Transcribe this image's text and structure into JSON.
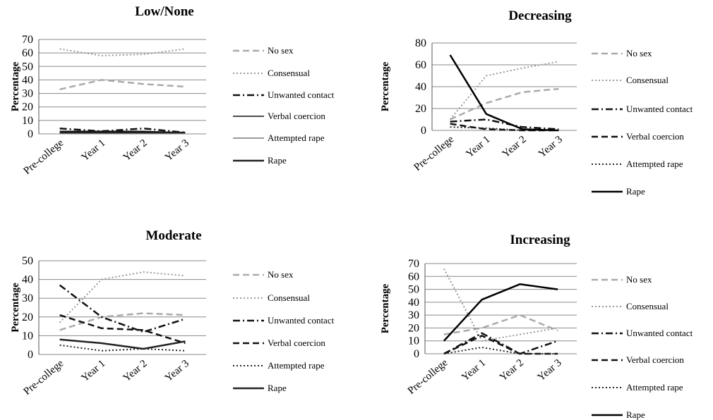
{
  "chart_data": [
    {
      "type": "line",
      "title": "Low/None",
      "ylabel": "Percentage",
      "categories": [
        "Pre-college",
        "Year 1",
        "Year 2",
        "Year 3"
      ],
      "ylim": [
        0,
        70
      ],
      "yticks": [
        0,
        10,
        20,
        30,
        40,
        50,
        60,
        70
      ],
      "grid": true,
      "legend_position": "right",
      "series": [
        {
          "name": "No sex",
          "values": [
            33,
            40,
            37,
            35
          ],
          "color": "#aaaaaa",
          "style": "dash",
          "width": 2.5
        },
        {
          "name": "Consensual",
          "values": [
            63,
            58,
            59,
            63
          ],
          "color": "#999999",
          "style": "dot",
          "width": 2
        },
        {
          "name": "Unwanted contact",
          "values": [
            4,
            2,
            4,
            1
          ],
          "color": "#111111",
          "style": "dashdot",
          "width": 2.5
        },
        {
          "name": "Verbal coercion",
          "values": [
            2,
            2,
            2,
            1
          ],
          "color": "#111111",
          "style": "solid",
          "width": 1.5
        },
        {
          "name": "Attempted rape",
          "values": [
            1,
            1,
            1,
            1
          ],
          "color": "#999999",
          "style": "solid",
          "width": 2
        },
        {
          "name": "Rape",
          "values": [
            1,
            1,
            1,
            1
          ],
          "color": "#222222",
          "style": "solid",
          "width": 2.5
        }
      ]
    },
    {
      "type": "line",
      "title": "Decreasing",
      "ylabel": "Percentage",
      "categories": [
        "Pre-college",
        "Year 1",
        "Year 2",
        "Year 3"
      ],
      "ylim": [
        0,
        80
      ],
      "yticks": [
        0,
        20,
        40,
        60,
        80
      ],
      "grid": true,
      "legend_position": "right",
      "series": [
        {
          "name": "No sex",
          "values": [
            10,
            25,
            35,
            38
          ],
          "color": "#aaaaaa",
          "style": "dash",
          "width": 2.5
        },
        {
          "name": "Consensual",
          "values": [
            10,
            50,
            57,
            63
          ],
          "color": "#999999",
          "style": "dot",
          "width": 2
        },
        {
          "name": "Unwanted contact",
          "values": [
            8,
            10,
            3,
            1
          ],
          "color": "#111111",
          "style": "dashdot",
          "width": 2.5
        },
        {
          "name": "Verbal coercion",
          "values": [
            6,
            1,
            0,
            0
          ],
          "color": "#111111",
          "style": "dash",
          "width": 2.5
        },
        {
          "name": "Attempted rape",
          "values": [
            3,
            2,
            0,
            0
          ],
          "color": "#222222",
          "style": "dot",
          "width": 2
        },
        {
          "name": "Rape",
          "values": [
            69,
            15,
            1,
            0
          ],
          "color": "#000000",
          "style": "solid",
          "width": 2.5
        }
      ]
    },
    {
      "type": "line",
      "title": "Moderate",
      "ylabel": "Percentage",
      "categories": [
        "Pre-college",
        "Year 1",
        "Year 2",
        "Year 3"
      ],
      "ylim": [
        0,
        50
      ],
      "yticks": [
        0,
        10,
        20,
        30,
        40,
        50
      ],
      "grid": true,
      "legend_position": "right",
      "series": [
        {
          "name": "No sex",
          "values": [
            13,
            20,
            22,
            21
          ],
          "color": "#aaaaaa",
          "style": "dash",
          "width": 2.5
        },
        {
          "name": "Consensual",
          "values": [
            17,
            40,
            44,
            42
          ],
          "color": "#999999",
          "style": "dot",
          "width": 2
        },
        {
          "name": "Unwanted contact",
          "values": [
            37,
            20,
            12,
            19
          ],
          "color": "#111111",
          "style": "dashdot",
          "width": 2.5
        },
        {
          "name": "Verbal coercion",
          "values": [
            21,
            14,
            13,
            6
          ],
          "color": "#111111",
          "style": "dash",
          "width": 2.5
        },
        {
          "name": "Attempted rape",
          "values": [
            5,
            2,
            3,
            2
          ],
          "color": "#222222",
          "style": "dot",
          "width": 2
        },
        {
          "name": "Rape",
          "values": [
            8,
            6,
            3,
            7
          ],
          "color": "#222222",
          "style": "solid",
          "width": 2.5
        }
      ]
    },
    {
      "type": "line",
      "title": "Increasing",
      "ylabel": "Percentage",
      "categories": [
        "Pre-college",
        "Year 1",
        "Year 2",
        "Year 3"
      ],
      "ylim": [
        0,
        70
      ],
      "yticks": [
        0,
        10,
        20,
        30,
        40,
        50,
        60,
        70
      ],
      "grid": true,
      "legend_position": "right",
      "series": [
        {
          "name": "No sex",
          "values": [
            15,
            20,
            30,
            18
          ],
          "color": "#aaaaaa",
          "style": "dash",
          "width": 2.5
        },
        {
          "name": "Consensual",
          "values": [
            66,
            10,
            15,
            20
          ],
          "color": "#999999",
          "style": "dot",
          "width": 2
        },
        {
          "name": "Unwanted contact",
          "values": [
            0,
            16,
            0,
            10
          ],
          "color": "#111111",
          "style": "dashdot",
          "width": 2.5
        },
        {
          "name": "Verbal coercion",
          "values": [
            0,
            14,
            0,
            0
          ],
          "color": "#111111",
          "style": "dash",
          "width": 2.5
        },
        {
          "name": "Attempted rape",
          "values": [
            0,
            5,
            0,
            0
          ],
          "color": "#222222",
          "style": "dot",
          "width": 2
        },
        {
          "name": "Rape",
          "values": [
            10,
            42,
            54,
            50
          ],
          "color": "#000000",
          "style": "solid",
          "width": 2.5
        }
      ]
    }
  ]
}
